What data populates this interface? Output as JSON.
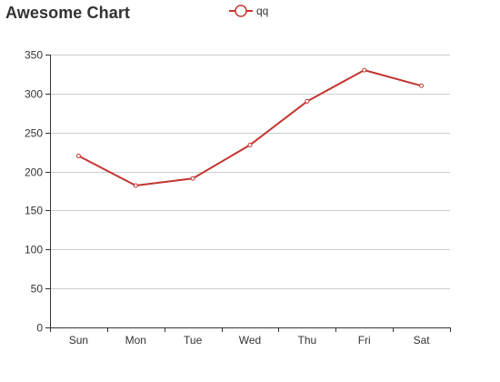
{
  "chart_data": {
    "type": "line",
    "title": "Awesome Chart",
    "categories": [
      "Sun",
      "Mon",
      "Tue",
      "Wed",
      "Thu",
      "Fri",
      "Sat"
    ],
    "series": [
      {
        "name": "qq",
        "values": [
          220,
          182,
          191,
          234,
          290,
          330,
          310
        ],
        "color": "#c23531"
      }
    ],
    "xlabel": "",
    "ylabel": "",
    "ylim": [
      0,
      350
    ],
    "yticks": [
      "0",
      "50",
      "100",
      "150",
      "200",
      "250",
      "300",
      "350"
    ],
    "grid": true,
    "legend_position": "top-center",
    "line_style": "straight",
    "markers": "empty-circle"
  },
  "colors": {
    "series": "#c23531",
    "axis": "#333333",
    "gridline": "#cccccc",
    "text": "#333333"
  }
}
